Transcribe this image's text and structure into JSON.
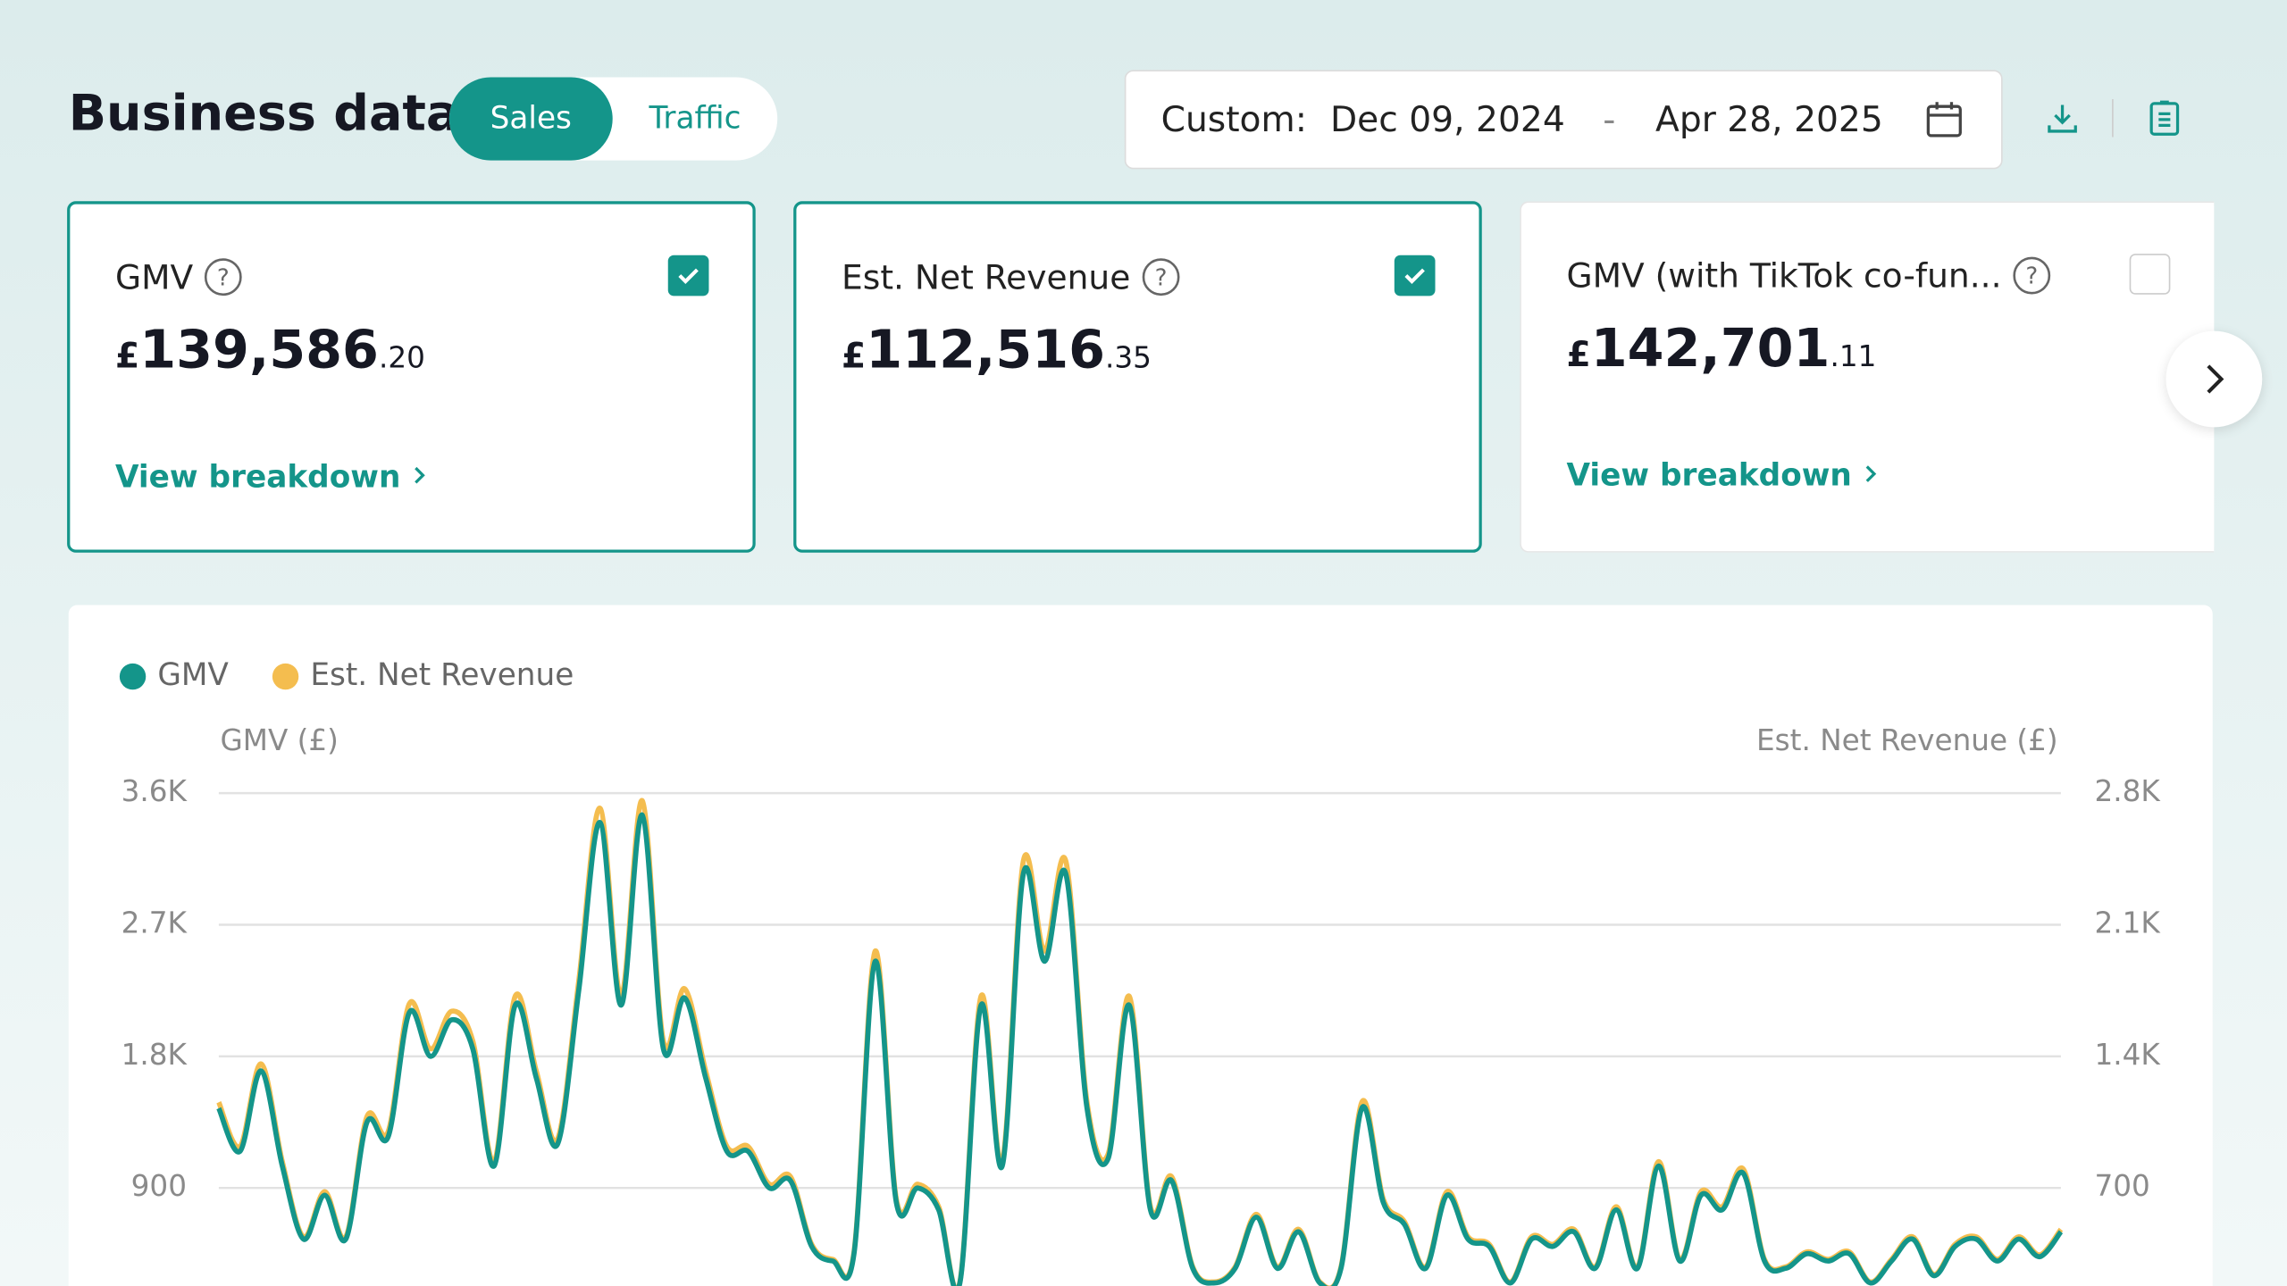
{
  "header": {
    "title": "Business data",
    "tabs": [
      "Sales",
      "Traffic"
    ],
    "date_label": "Custom:",
    "date_start": "Dec 09, 2024",
    "date_sep": "-",
    "date_end": "Apr 28, 2025"
  },
  "cards": [
    {
      "label": "GMV",
      "currency": "£",
      "amount": "139,586",
      "decimals": ".20",
      "link": "View breakdown",
      "checked": true
    },
    {
      "label": "Est. Net Revenue",
      "currency": "£",
      "amount": "112,516",
      "decimals": ".35",
      "checked": true
    },
    {
      "label": "GMV (with TikTok co-fun...",
      "currency": "£",
      "amount": "142,701",
      "decimals": ".11",
      "link": "View breakdown",
      "checked": false
    }
  ],
  "chart_data": {
    "type": "line",
    "ylabel": "GMV (£)",
    "y2label": "Est. Net Revenue (£)",
    "ylim": [
      0,
      3600
    ],
    "yticks": [
      900,
      {
        "value": 1800,
        "label": "1.8K"
      },
      {
        "value": 2700,
        "label": "2.7K"
      },
      {
        "value": 3600,
        "label": "3.6K"
      }
    ],
    "y2lim": [
      0,
      2800
    ],
    "y2ticks": [
      700,
      {
        "value": 1400,
        "label": "1.4K"
      },
      {
        "value": 2100,
        "label": "2.1K"
      },
      {
        "value": 2800,
        "label": "2.8K"
      }
    ],
    "grid": true,
    "series": [
      {
        "name": "GMV",
        "color": "#14958a",
        "values": [
          1445,
          1150,
          1700,
          1050,
          550,
          850,
          550,
          1350,
          1250,
          2100,
          1800,
          2050,
          1850,
          1050,
          2150,
          1650,
          1200,
          2250,
          3400,
          2150,
          3450,
          1850,
          2200,
          1650,
          1150,
          1150,
          900,
          950,
          500,
          400,
          450,
          2450,
          800,
          900,
          750,
          250,
          2150,
          1050,
          3050,
          2450,
          3050,
          1450,
          1100,
          2150,
          750,
          950,
          350,
          250,
          350,
          700,
          350,
          600,
          250,
          350,
          1450,
          800,
          650,
          350,
          850,
          550,
          500,
          250,
          550,
          500,
          600,
          350,
          750,
          350,
          1050,
          400,
          850,
          750,
          1000,
          400,
          350,
          450,
          400,
          450,
          250,
          400,
          550,
          300,
          500,
          550,
          400,
          550,
          430,
          600
        ]
      },
      {
        "name": "Est. Net Revenue",
        "color": "#f4bd4f",
        "axis": "y2",
        "values": [
          1156,
          920,
          1360,
          840,
          440,
          680,
          440,
          1080,
          1000,
          1680,
          1440,
          1640,
          1480,
          840,
          1720,
          1320,
          960,
          1800,
          2720,
          1720,
          2760,
          1480,
          1760,
          1320,
          920,
          920,
          720,
          760,
          400,
          320,
          360,
          1960,
          640,
          720,
          600,
          200,
          1720,
          840,
          2440,
          1960,
          2440,
          1160,
          880,
          1720,
          600,
          760,
          280,
          200,
          280,
          560,
          280,
          480,
          200,
          280,
          1160,
          640,
          520,
          280,
          680,
          440,
          400,
          200,
          440,
          400,
          480,
          280,
          600,
          280,
          840,
          320,
          680,
          600,
          800,
          320,
          280,
          360,
          320,
          360,
          200,
          320,
          440,
          240,
          400,
          440,
          320,
          440,
          344,
          480
        ]
      }
    ]
  }
}
